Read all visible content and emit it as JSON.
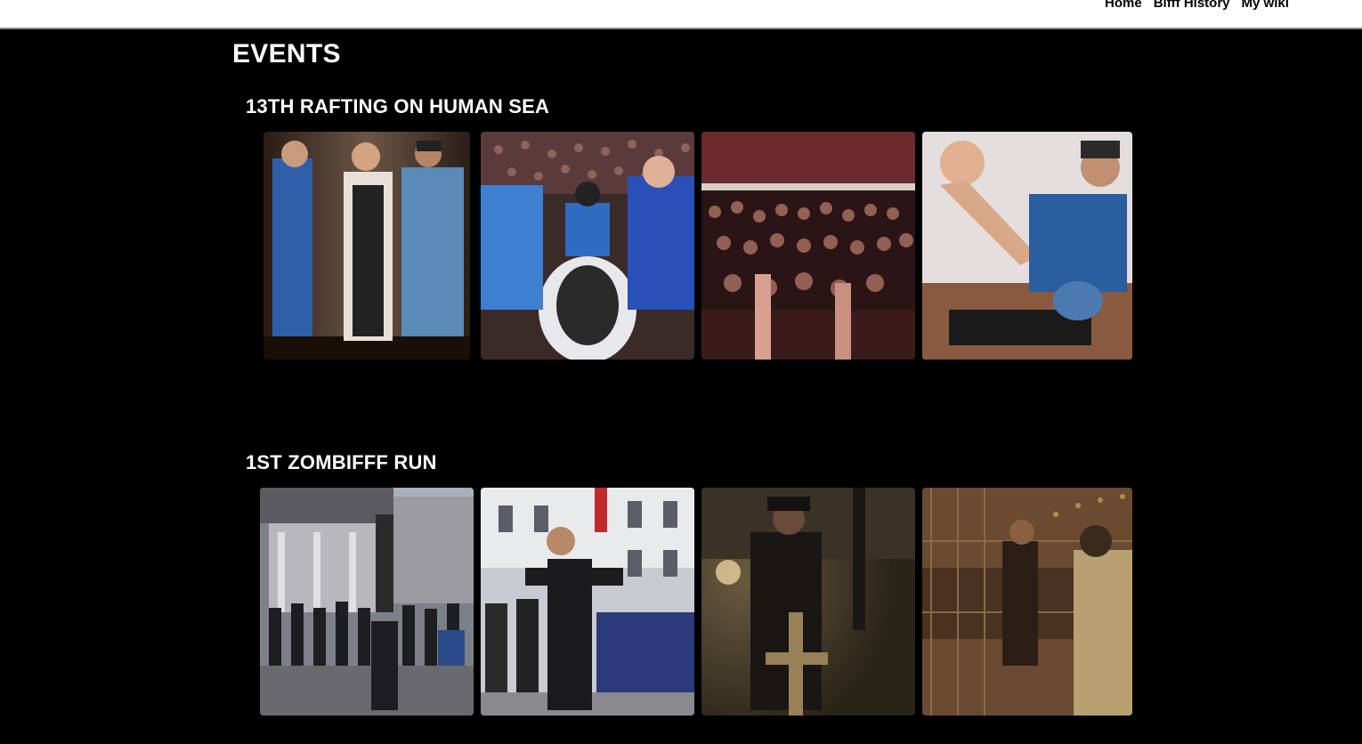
{
  "nav": {
    "items": [
      {
        "label": "Home"
      },
      {
        "label": "Bifff History"
      },
      {
        "label": "My wiki"
      }
    ]
  },
  "page": {
    "title": "EVENTS"
  },
  "events": [
    {
      "title": "13TH RAFTING ON HUMAN SEA",
      "photos": [
        {
          "scene": "performers-on-stage"
        },
        {
          "scene": "raft-on-audience"
        },
        {
          "scene": "cheering-crowd"
        },
        {
          "scene": "wrestler-on-stage"
        }
      ]
    },
    {
      "title": "1ST ZOMBIFFF RUN",
      "photos": [
        {
          "scene": "runners-start-gate"
        },
        {
          "scene": "zombie-runner-street"
        },
        {
          "scene": "priest-with-cross"
        },
        {
          "scene": "runner-night-fence"
        }
      ]
    }
  ]
}
